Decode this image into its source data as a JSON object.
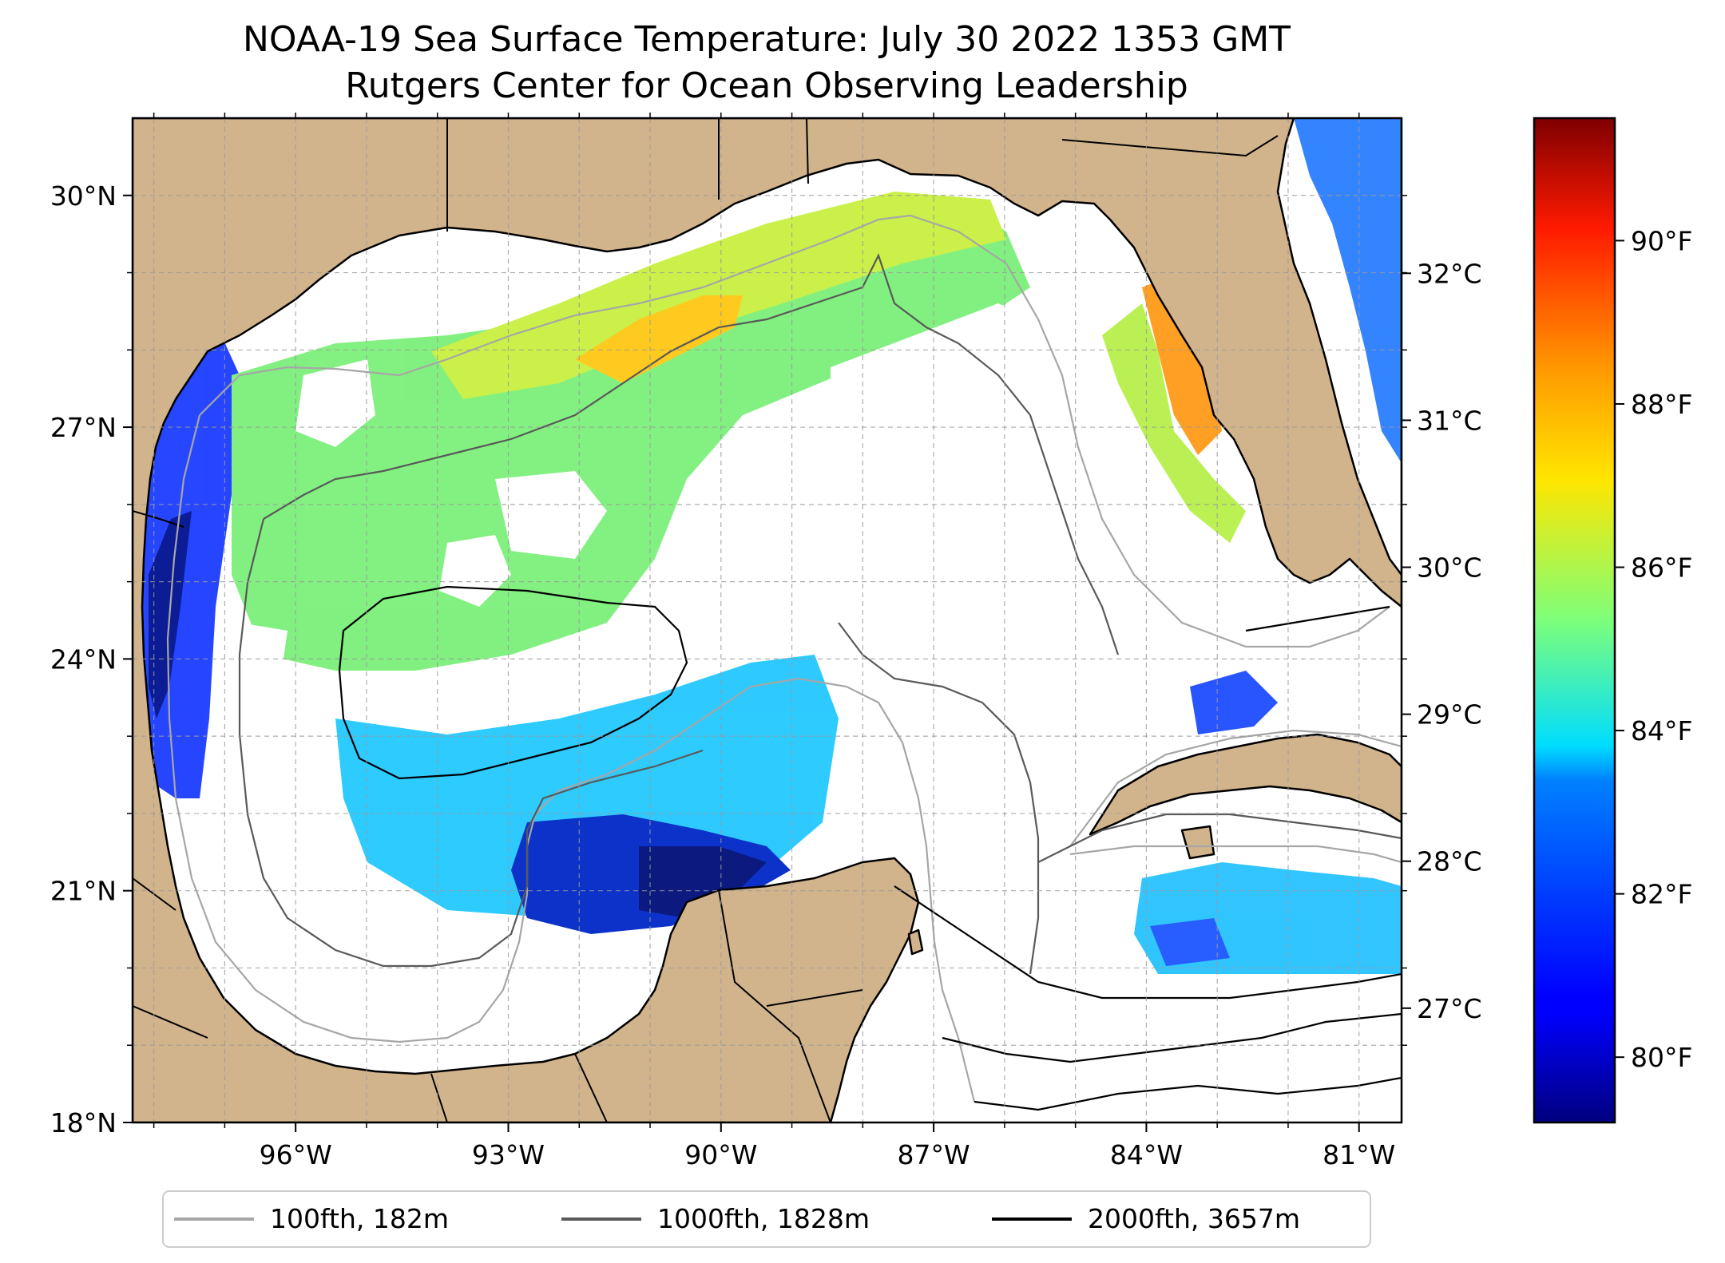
{
  "title": {
    "line1": "NOAA-19 Sea Surface Temperature: July 30 2022 1353 GMT",
    "line2": "Rutgers Center for Ocean Observing Leadership"
  },
  "map": {
    "lon_range": [
      -98.3,
      -80.4
    ],
    "lat_range": [
      18,
      31
    ],
    "land_color": "#d2b48c",
    "cloud_color": "#ffffff",
    "grid": true,
    "lon_ticks": [
      {
        "value": -96,
        "label": "96°W"
      },
      {
        "value": -93,
        "label": "93°W"
      },
      {
        "value": -90,
        "label": "90°W"
      },
      {
        "value": -87,
        "label": "87°W"
      },
      {
        "value": -84,
        "label": "84°W"
      },
      {
        "value": -81,
        "label": "81°W"
      }
    ],
    "lat_ticks": [
      {
        "value": 18,
        "label": "18°N"
      },
      {
        "value": 21,
        "label": "21°N"
      },
      {
        "value": 24,
        "label": "24°N"
      },
      {
        "value": 27,
        "label": "27°N"
      },
      {
        "value": 30,
        "label": "30°N"
      }
    ]
  },
  "celsius_axis": {
    "ticks": [
      {
        "value": 27,
        "label": "27°C"
      },
      {
        "value": 28,
        "label": "28°C"
      },
      {
        "value": 29,
        "label": "29°C"
      },
      {
        "value": 30,
        "label": "30°C"
      },
      {
        "value": 31,
        "label": "31°C"
      },
      {
        "value": 32,
        "label": "32°C"
      }
    ]
  },
  "colorbar": {
    "colormap": "jet",
    "range_f": [
      79.2,
      91.5
    ],
    "ticks": [
      {
        "value": 80,
        "label": "80°F"
      },
      {
        "value": 82,
        "label": "82°F"
      },
      {
        "value": 84,
        "label": "84°F"
      },
      {
        "value": 86,
        "label": "86°F"
      },
      {
        "value": 88,
        "label": "88°F"
      },
      {
        "value": 90,
        "label": "90°F"
      }
    ]
  },
  "legend": {
    "placement": "bottom-center",
    "items": [
      {
        "label": "100fth, 182m",
        "color": "#a6a6a6"
      },
      {
        "label": "1000fth, 1828m",
        "color": "#595959"
      },
      {
        "label": "2000fth, 3657m",
        "color": "#000000"
      }
    ]
  }
}
